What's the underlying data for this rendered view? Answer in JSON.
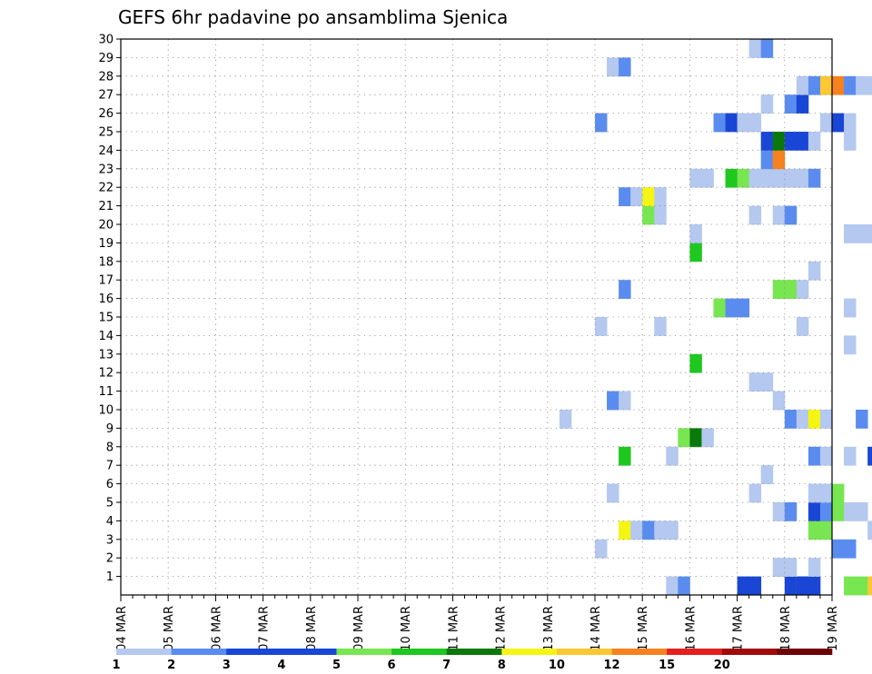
{
  "chart_data": {
    "type": "heatmap",
    "title": "GEFS 6hr padavine po ansamblima Sjenica",
    "xlabel": "",
    "ylabel": "",
    "x_ticks": [
      "04 MAR",
      "05 MAR",
      "06 MAR",
      "07 MAR",
      "08 MAR",
      "09 MAR",
      "10 MAR",
      "11 MAR",
      "12 MAR",
      "13 MAR",
      "14 MAR",
      "15 MAR",
      "16 MAR",
      "17 MAR",
      "18 MAR",
      "19 MAR"
    ],
    "y_ticks": [
      "1",
      "2",
      "3",
      "4",
      "5",
      "6",
      "7",
      "8",
      "9",
      "10",
      "11",
      "12",
      "13",
      "14",
      "15",
      "16",
      "17",
      "18",
      "19",
      "20",
      "21",
      "22",
      "23",
      "24",
      "25",
      "26",
      "27",
      "28",
      "29",
      "30"
    ],
    "xlim_days": [
      0,
      15
    ],
    "ylim": [
      0,
      30
    ],
    "grid": true,
    "colorbar": {
      "labels": [
        "1",
        "2",
        "3",
        "4",
        "5",
        "6",
        "7",
        "8",
        "10",
        "12",
        "15",
        "20"
      ],
      "colors": [
        "#b4c8f0",
        "#5a8cf0",
        "#1a46d6",
        "#1a46d6",
        "#78e650",
        "#1ec81e",
        "#0a780a",
        "#f5f514",
        "#fac832",
        "#f5821e",
        "#e61e1e",
        "#a00a0a",
        "#6e0000"
      ]
    },
    "cells": [
      {
        "t": 52,
        "m": 0,
        "c": 3
      },
      {
        "t": 53,
        "m": 0,
        "c": 3
      },
      {
        "t": 56,
        "m": 0,
        "c": 4
      },
      {
        "t": 57,
        "m": 0,
        "c": 2
      },
      {
        "t": 61,
        "m": 0,
        "c": 5
      },
      {
        "t": 62,
        "m": 0,
        "c": 5
      },
      {
        "t": 63,
        "m": 0,
        "c": 9
      },
      {
        "t": 64,
        "m": 0,
        "c": 12
      },
      {
        "t": 65,
        "m": 0,
        "c": 6
      },
      {
        "t": 46,
        "m": 0,
        "c": 1
      },
      {
        "t": 47,
        "m": 0,
        "c": 2
      },
      {
        "t": 57,
        "m": 0,
        "c": 3
      },
      {
        "t": 58,
        "m": 0,
        "c": 3
      },
      {
        "t": 55,
        "m": 1,
        "c": 1
      },
      {
        "t": 56,
        "m": 1,
        "c": 1
      },
      {
        "t": 58,
        "m": 1,
        "c": 1
      },
      {
        "t": 64,
        "m": 1,
        "c": 2
      },
      {
        "t": 65,
        "m": 1,
        "c": 3
      },
      {
        "t": 40,
        "m": 2,
        "c": 1
      },
      {
        "t": 60,
        "m": 2,
        "c": 2
      },
      {
        "t": 61,
        "m": 2,
        "c": 2
      },
      {
        "t": 42,
        "m": 3,
        "c": 8
      },
      {
        "t": 43,
        "m": 3,
        "c": 1
      },
      {
        "t": 44,
        "m": 3,
        "c": 2
      },
      {
        "t": 45,
        "m": 3,
        "c": 1
      },
      {
        "t": 46,
        "m": 3,
        "c": 1
      },
      {
        "t": 58,
        "m": 3,
        "c": 5
      },
      {
        "t": 59,
        "m": 3,
        "c": 5
      },
      {
        "t": 63,
        "m": 3,
        "c": 1
      },
      {
        "t": 64,
        "m": 3,
        "c": 1
      },
      {
        "t": 65,
        "m": 3,
        "c": 1
      },
      {
        "t": 67,
        "m": 3,
        "c": 1
      },
      {
        "t": 68,
        "m": 3,
        "c": 1
      },
      {
        "t": 55,
        "m": 4,
        "c": 1
      },
      {
        "t": 56,
        "m": 4,
        "c": 2
      },
      {
        "t": 58,
        "m": 4,
        "c": 3
      },
      {
        "t": 59,
        "m": 4,
        "c": 2
      },
      {
        "t": 60,
        "m": 4,
        "c": 5
      },
      {
        "t": 61,
        "m": 4,
        "c": 1
      },
      {
        "t": 62,
        "m": 4,
        "c": 1
      },
      {
        "t": 41,
        "m": 5,
        "c": 1
      },
      {
        "t": 53,
        "m": 5,
        "c": 1
      },
      {
        "t": 58,
        "m": 5,
        "c": 1
      },
      {
        "t": 59,
        "m": 5,
        "c": 1
      },
      {
        "t": 60,
        "m": 5,
        "c": 5
      },
      {
        "t": 66,
        "m": 5,
        "c": 1
      },
      {
        "t": 68,
        "m": 5,
        "c": 2
      },
      {
        "t": 69,
        "m": 5,
        "c": 1
      },
      {
        "t": 70,
        "m": 5,
        "c": 1
      },
      {
        "t": 54,
        "m": 6,
        "c": 1
      },
      {
        "t": 65,
        "m": 6,
        "c": 1
      },
      {
        "t": 66,
        "m": 6,
        "c": 3
      },
      {
        "t": 42,
        "m": 7,
        "c": 6
      },
      {
        "t": 46,
        "m": 7,
        "c": 1
      },
      {
        "t": 58,
        "m": 7,
        "c": 2
      },
      {
        "t": 59,
        "m": 7,
        "c": 1
      },
      {
        "t": 61,
        "m": 7,
        "c": 1
      },
      {
        "t": 63,
        "m": 7,
        "c": 3
      },
      {
        "t": 47,
        "m": 8,
        "c": 5
      },
      {
        "t": 48,
        "m": 8,
        "c": 7
      },
      {
        "t": 49,
        "m": 8,
        "c": 1
      },
      {
        "t": 37,
        "m": 9,
        "c": 1
      },
      {
        "t": 56,
        "m": 9,
        "c": 2
      },
      {
        "t": 57,
        "m": 9,
        "c": 1
      },
      {
        "t": 58,
        "m": 9,
        "c": 8
      },
      {
        "t": 59,
        "m": 9,
        "c": 1
      },
      {
        "t": 62,
        "m": 9,
        "c": 2
      },
      {
        "t": 64,
        "m": 9,
        "c": 1
      },
      {
        "t": 65,
        "m": 9,
        "c": 1
      },
      {
        "t": 41,
        "m": 10,
        "c": 2
      },
      {
        "t": 42,
        "m": 10,
        "c": 1
      },
      {
        "t": 55,
        "m": 10,
        "c": 1
      },
      {
        "t": 53,
        "m": 11,
        "c": 1
      },
      {
        "t": 54,
        "m": 11,
        "c": 1
      },
      {
        "t": 48,
        "m": 12,
        "c": 6
      },
      {
        "t": 61,
        "m": 13,
        "c": 1
      },
      {
        "t": 68,
        "m": 13,
        "c": 2
      },
      {
        "t": 40,
        "m": 14,
        "c": 1
      },
      {
        "t": 45,
        "m": 14,
        "c": 1
      },
      {
        "t": 57,
        "m": 14,
        "c": 1
      },
      {
        "t": 66,
        "m": 14,
        "c": 1
      },
      {
        "t": 50,
        "m": 15,
        "c": 5
      },
      {
        "t": 51,
        "m": 15,
        "c": 2
      },
      {
        "t": 52,
        "m": 15,
        "c": 2
      },
      {
        "t": 61,
        "m": 15,
        "c": 1
      },
      {
        "t": 75,
        "m": 15,
        "c": 1
      },
      {
        "t": 42,
        "m": 16,
        "c": 2
      },
      {
        "t": 55,
        "m": 16,
        "c": 5
      },
      {
        "t": 56,
        "m": 16,
        "c": 5
      },
      {
        "t": 57,
        "m": 16,
        "c": 1
      },
      {
        "t": 58,
        "m": 17,
        "c": 1
      },
      {
        "t": 48,
        "m": 18,
        "c": 6
      },
      {
        "t": 48,
        "m": 19,
        "c": 1
      },
      {
        "t": 61,
        "m": 19,
        "c": 1
      },
      {
        "t": 62,
        "m": 19,
        "c": 1
      },
      {
        "t": 63,
        "m": 19,
        "c": 1
      },
      {
        "t": 66,
        "m": 19,
        "c": 2
      },
      {
        "t": 67,
        "m": 19,
        "c": 9
      },
      {
        "t": 68,
        "m": 19,
        "c": 2
      },
      {
        "t": 44,
        "m": 20,
        "c": 5
      },
      {
        "t": 45,
        "m": 20,
        "c": 1
      },
      {
        "t": 53,
        "m": 20,
        "c": 1
      },
      {
        "t": 55,
        "m": 20,
        "c": 1
      },
      {
        "t": 56,
        "m": 20,
        "c": 2
      },
      {
        "t": 42,
        "m": 21,
        "c": 2
      },
      {
        "t": 43,
        "m": 21,
        "c": 1
      },
      {
        "t": 44,
        "m": 21,
        "c": 8
      },
      {
        "t": 45,
        "m": 21,
        "c": 1
      },
      {
        "t": 70,
        "m": 21,
        "c": 1
      },
      {
        "t": 48,
        "m": 22,
        "c": 1
      },
      {
        "t": 49,
        "m": 22,
        "c": 1
      },
      {
        "t": 51,
        "m": 22,
        "c": 6
      },
      {
        "t": 52,
        "m": 22,
        "c": 5
      },
      {
        "t": 53,
        "m": 22,
        "c": 1
      },
      {
        "t": 54,
        "m": 22,
        "c": 1
      },
      {
        "t": 55,
        "m": 22,
        "c": 1
      },
      {
        "t": 56,
        "m": 22,
        "c": 1
      },
      {
        "t": 57,
        "m": 22,
        "c": 1
      },
      {
        "t": 58,
        "m": 22,
        "c": 2
      },
      {
        "t": 54,
        "m": 23,
        "c": 2
      },
      {
        "t": 55,
        "m": 23,
        "c": 10
      },
      {
        "t": 64,
        "m": 23,
        "c": 1
      },
      {
        "t": 65,
        "m": 23,
        "c": 6
      },
      {
        "t": 66,
        "m": 23,
        "c": 11
      },
      {
        "t": 67,
        "m": 23,
        "c": 12
      },
      {
        "t": 68,
        "m": 23,
        "c": 3
      },
      {
        "t": 69,
        "m": 23,
        "c": 5
      },
      {
        "t": 70,
        "m": 23,
        "c": 3
      },
      {
        "t": 54,
        "m": 24,
        "c": 3
      },
      {
        "t": 55,
        "m": 24,
        "c": 7
      },
      {
        "t": 56,
        "m": 24,
        "c": 3
      },
      {
        "t": 57,
        "m": 24,
        "c": 3
      },
      {
        "t": 58,
        "m": 24,
        "c": 1
      },
      {
        "t": 61,
        "m": 24,
        "c": 1
      },
      {
        "t": 66,
        "m": 24,
        "c": 2
      },
      {
        "t": 67,
        "m": 24,
        "c": 1
      },
      {
        "t": 69,
        "m": 24,
        "c": 1
      },
      {
        "t": 70,
        "m": 24,
        "c": 1
      },
      {
        "t": 40,
        "m": 25,
        "c": 2
      },
      {
        "t": 50,
        "m": 25,
        "c": 2
      },
      {
        "t": 51,
        "m": 25,
        "c": 3
      },
      {
        "t": 52,
        "m": 25,
        "c": 1
      },
      {
        "t": 53,
        "m": 25,
        "c": 1
      },
      {
        "t": 59,
        "m": 25,
        "c": 1
      },
      {
        "t": 60,
        "m": 25,
        "c": 3
      },
      {
        "t": 61,
        "m": 25,
        "c": 1
      },
      {
        "t": 54,
        "m": 26,
        "c": 1
      },
      {
        "t": 56,
        "m": 26,
        "c": 2
      },
      {
        "t": 57,
        "m": 26,
        "c": 3
      },
      {
        "t": 66,
        "m": 26,
        "c": 1
      },
      {
        "t": 57,
        "m": 27,
        "c": 1
      },
      {
        "t": 58,
        "m": 27,
        "c": 2
      },
      {
        "t": 59,
        "m": 27,
        "c": 9
      },
      {
        "t": 60,
        "m": 27,
        "c": 10
      },
      {
        "t": 61,
        "m": 27,
        "c": 2
      },
      {
        "t": 62,
        "m": 27,
        "c": 1
      },
      {
        "t": 63,
        "m": 27,
        "c": 1
      },
      {
        "t": 66,
        "m": 27,
        "c": 6
      },
      {
        "t": 69,
        "m": 27,
        "c": 5
      },
      {
        "t": 70,
        "m": 27,
        "c": 9
      },
      {
        "t": 41,
        "m": 28,
        "c": 1
      },
      {
        "t": 42,
        "m": 28,
        "c": 2
      },
      {
        "t": 53,
        "m": 29,
        "c": 1
      },
      {
        "t": 54,
        "m": 29,
        "c": 2
      },
      {
        "t": 64,
        "m": 29,
        "c": 3
      },
      {
        "t": 65,
        "m": 29,
        "c": 2
      }
    ]
  }
}
